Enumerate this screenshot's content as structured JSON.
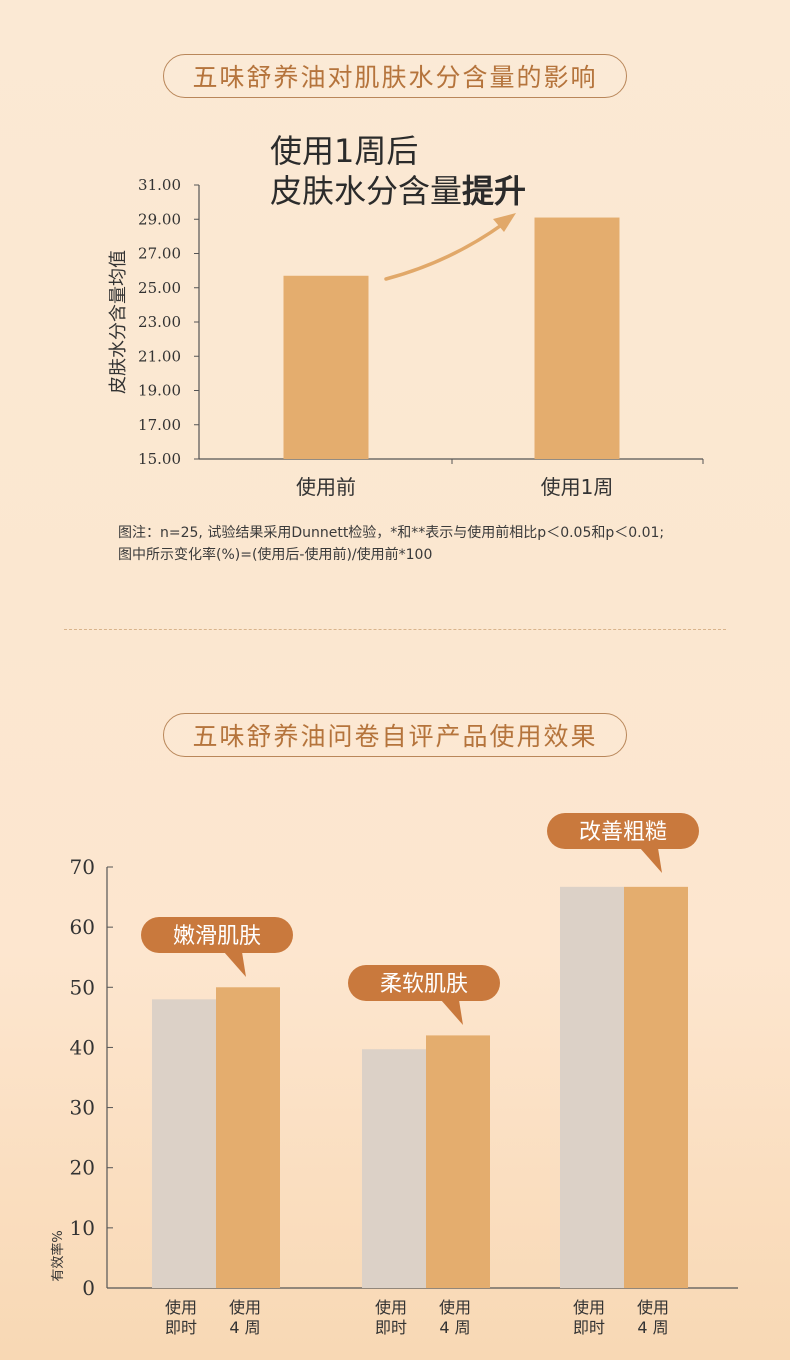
{
  "titles": {
    "section1": "五味舒养油对肌肤水分含量的影响",
    "section2": "五味舒养油问卷自评产品使用效果"
  },
  "headline": {
    "line1": "使用1周后",
    "line2_prefix": "皮肤水分含量",
    "line2_bold": "提升"
  },
  "notes": {
    "line1": "图注：n=25, 试验结果采用Dunnett检验，*和**表示与使用前相比p＜0.05和p＜0.01;",
    "line2": "图中所示变化率(%)=(使用后-使用前)/使用前*100"
  },
  "colors": {
    "bar_after": "#e4ad6e",
    "bar_before": "#dcd1c7",
    "callout": "#c9793d",
    "arrow": "#e1a869",
    "title_text": "#b5743c"
  },
  "chart_data": [
    {
      "type": "bar",
      "ylabel": "皮肤水分含量均值",
      "ylim": [
        15.0,
        31.0
      ],
      "yticks": [
        "15.00",
        "17.00",
        "19.00",
        "21.00",
        "23.00",
        "25.00",
        "27.00",
        "29.00",
        "31.00"
      ],
      "categories": [
        "使用前",
        "使用1周"
      ],
      "values": [
        25.7,
        29.1
      ],
      "grid": false
    },
    {
      "type": "bar",
      "ylabel": "有效率%",
      "ylim": [
        0,
        70
      ],
      "yticks": [
        "0",
        "10",
        "20",
        "30",
        "40",
        "50",
        "60",
        "70"
      ],
      "groups": [
        {
          "callout": "嫩滑肌肤",
          "labels": [
            [
              "使用",
              "即时"
            ],
            [
              "使用",
              "4 周"
            ]
          ],
          "values": [
            48,
            50
          ]
        },
        {
          "callout": "柔软肌肤",
          "labels": [
            [
              "使用",
              "即时"
            ],
            [
              "使用",
              "4 周"
            ]
          ],
          "values": [
            39.7,
            42
          ]
        },
        {
          "callout": "改善粗糙",
          "labels": [
            [
              "使用",
              "即时"
            ],
            [
              "使用",
              "4 周"
            ]
          ],
          "values": [
            66.7,
            66.7
          ]
        }
      ],
      "grid": false
    }
  ]
}
